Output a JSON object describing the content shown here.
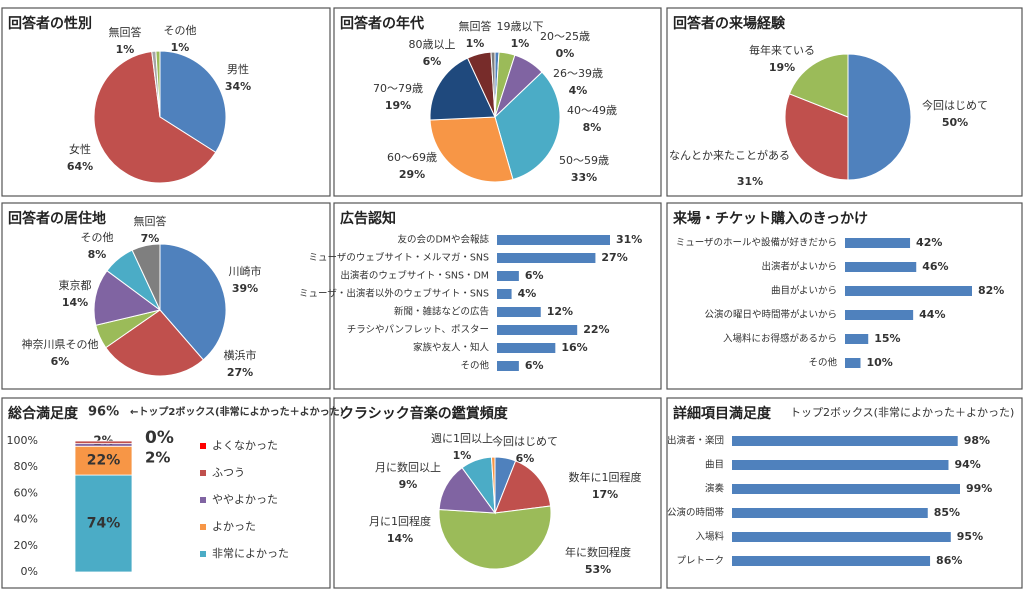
{
  "chart_data": [
    {
      "type": "pie",
      "title": "回答者の性別",
      "categories": [
        "男性",
        "女性",
        "無回答",
        "その他"
      ],
      "values": [
        34,
        64,
        1,
        1
      ],
      "value_labels": [
        "34%",
        "64%",
        "1%",
        "1%"
      ],
      "colors": [
        "#4f81bd",
        "#c0504d",
        "#a5a5a5",
        "#9bbb59"
      ]
    },
    {
      "type": "pie",
      "title": "回答者の年代",
      "categories": [
        "19歳以下",
        "20～25歳",
        "26～39歳",
        "40～49歳",
        "50～59歳",
        "60～69歳",
        "70～79歳",
        "80歳以上",
        "無回答"
      ],
      "values": [
        1,
        0,
        4,
        8,
        33,
        29,
        19,
        6,
        1
      ],
      "value_labels": [
        "1%",
        "0%",
        "4%",
        "8%",
        "33%",
        "29%",
        "19%",
        "6%",
        "1%"
      ],
      "colors": [
        "#4f81bd",
        "#c0504d",
        "#9bbb59",
        "#8064a2",
        "#4bacc6",
        "#f79646",
        "#1f497d",
        "#772c2a",
        "#7f7f7f"
      ]
    },
    {
      "type": "pie",
      "title": "回答者の来場経験",
      "categories": [
        "今回はじめて",
        "なんとか来たことがある",
        "毎年来ている"
      ],
      "values": [
        50,
        31,
        19
      ],
      "value_labels": [
        "50%",
        "31%",
        "19%"
      ],
      "colors": [
        "#4f81bd",
        "#c0504d",
        "#9bbb59"
      ]
    },
    {
      "type": "pie",
      "title": "回答者の居住地",
      "categories": [
        "川崎市",
        "横浜市",
        "神奈川県その他",
        "東京都",
        "その他",
        "無回答"
      ],
      "values": [
        39,
        27,
        6,
        14,
        8,
        7
      ],
      "value_labels": [
        "39%",
        "27%",
        "6%",
        "14%",
        "8%",
        "7%"
      ],
      "colors": [
        "#4f81bd",
        "#c0504d",
        "#9bbb59",
        "#8064a2",
        "#4bacc6",
        "#7f7f7f"
      ]
    },
    {
      "type": "hbar",
      "title": "広告認知",
      "categories": [
        "友の会のDMや会報誌",
        "ミューザのウェブサイト・メルマガ・SNS",
        "出演者のウェブサイト・SNS・DM",
        "ミューザ・出演者以外のウェブサイト・SNS",
        "新聞・雑誌などの広告",
        "チラシやパンフレット、ポスター",
        "家族や友人・知人",
        "その他"
      ],
      "values": [
        31,
        27,
        6,
        4,
        12,
        22,
        16,
        6
      ],
      "value_labels": [
        "31%",
        "27%",
        "6%",
        "4%",
        "12%",
        "22%",
        "16%",
        "6%"
      ],
      "color": "#4f81bd"
    },
    {
      "type": "hbar",
      "title": "来場・チケット購入のきっかけ",
      "categories": [
        "ミューザのホールや設備が好きだから",
        "出演者がよいから",
        "曲目がよいから",
        "公演の曜日や時間帯がよいから",
        "入場料にお得感があるから",
        "その他"
      ],
      "values": [
        42,
        46,
        82,
        44,
        15,
        10
      ],
      "value_labels": [
        "42%",
        "46%",
        "82%",
        "44%",
        "15%",
        "10%"
      ],
      "color": "#4f81bd"
    },
    {
      "type": "stacked_bar",
      "title": "総合満足度",
      "annotations": [
        "96%",
        "←トップ2ボックス(非常によかった＋よかった)"
      ],
      "series": [
        {
          "name": "非常によかった",
          "color": "#4bacc6",
          "values": [
            74
          ],
          "value_labels": [
            "74%"
          ]
        },
        {
          "name": "よかった",
          "color": "#f79646",
          "values": [
            22
          ],
          "value_labels": [
            "22%"
          ]
        },
        {
          "name": "ややよかった",
          "color": "#8064a2",
          "values": [
            2
          ],
          "value_labels": [
            "2%"
          ]
        },
        {
          "name": "ふつう",
          "color": "#c0504d",
          "values": [
            2
          ],
          "value_labels": [
            "2%"
          ]
        },
        {
          "name": "よくなかった",
          "color": "#ff0000",
          "values": [
            0
          ],
          "value_labels": [
            "0%"
          ]
        }
      ],
      "ylim": [
        0,
        100
      ],
      "yticks": [
        {
          "value": 0,
          "label": "0%"
        },
        {
          "value": 20,
          "label": "20%"
        },
        {
          "value": 40,
          "label": "40%"
        },
        {
          "value": 60,
          "label": "60%"
        },
        {
          "value": 80,
          "label": "80%"
        },
        {
          "value": 100,
          "label": "100%"
        }
      ]
    },
    {
      "type": "pie",
      "title": "クラシック音楽の鑑賞頻度",
      "categories": [
        "今回はじめて",
        "数年に1回程度",
        "年に数回程度",
        "月に1回程度",
        "月に数回以上",
        "週に1回以上"
      ],
      "values": [
        6,
        17,
        53,
        14,
        9,
        1
      ],
      "value_labels": [
        "6%",
        "17%",
        "53%",
        "14%",
        "9%",
        "1%"
      ],
      "colors": [
        "#4f81bd",
        "#c0504d",
        "#9bbb59",
        "#8064a2",
        "#4bacc6",
        "#f79646"
      ]
    },
    {
      "type": "hbar",
      "title": "詳細項目満足度",
      "subtitle": "トップ2ボックス(非常によかった＋よかった)",
      "categories": [
        "出演者・楽団",
        "曲目",
        "演奏",
        "公演の時間帯",
        "入場料",
        "プレトーク"
      ],
      "values": [
        98,
        94,
        99,
        85,
        95,
        86
      ],
      "value_labels": [
        "98%",
        "94%",
        "99%",
        "85%",
        "95%",
        "86%"
      ],
      "color": "#4f81bd"
    }
  ]
}
